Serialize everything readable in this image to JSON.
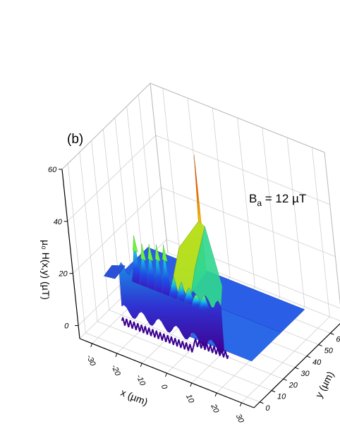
{
  "figure": {
    "panel_label": "(b)"
  },
  "chart_data": {
    "type": "surface3d",
    "annotation": {
      "base": "B",
      "subscript": "a",
      "rest": " = 12 µT"
    },
    "xlabel": "x (µm)",
    "ylabel": "y (µm)",
    "zlabel": "µ₀ H(x,y) (µT)",
    "x_ticks": [
      "-30",
      "-20",
      "-10",
      "0",
      "10",
      "20",
      "30"
    ],
    "y_ticks": [
      "0",
      "10",
      "20",
      "30",
      "40",
      "50",
      "60"
    ],
    "z_ticks": [
      "0",
      "20",
      "40",
      "60"
    ],
    "xlim": [
      -35,
      35
    ],
    "ylim": [
      -5,
      70
    ],
    "zlim": [
      -5,
      60
    ],
    "grid": true,
    "colormap": [
      "#3a00b0",
      "#1e40e0",
      "#18b8e8",
      "#30e090",
      "#b0e020",
      "#f0d000",
      "#f06000",
      "#e00000"
    ],
    "surface_summary": {
      "baseline_field": 12,
      "edge_spike_peak": 57,
      "plateau_level": 33,
      "ridge_peaks": [
        28,
        26,
        27,
        28,
        29,
        18,
        17,
        16,
        14,
        15
      ]
    }
  }
}
